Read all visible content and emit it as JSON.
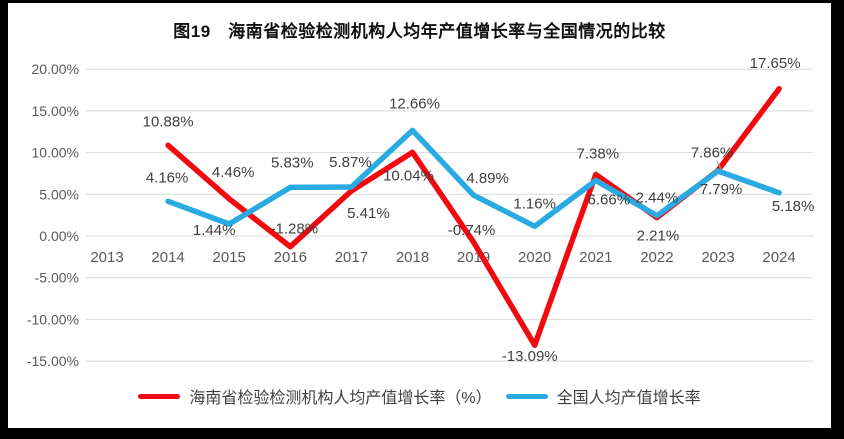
{
  "title": "图19　海南省检验检测机构人均年产值增长率与全国情况的比较",
  "chart_data": {
    "type": "line",
    "title": "图19　海南省检验检测机构人均年产值增长率与全国情况的比较",
    "categories": [
      "2013",
      "2014",
      "2015",
      "2016",
      "2017",
      "2018",
      "2019",
      "2020",
      "2021",
      "2022",
      "2023",
      "2024"
    ],
    "series": [
      {
        "name": "海南省检验检测机构人均产值增长率（%）",
        "color": "#f2090e",
        "values": [
          null,
          10.88,
          4.46,
          -1.28,
          5.41,
          10.04,
          -0.74,
          -13.09,
          7.38,
          2.21,
          7.86,
          17.65
        ],
        "point_labels": [
          null,
          "10.88%",
          "4.46%",
          "-1.28%",
          "5.41%",
          "10.04%",
          "-0.74%",
          "-13.09%",
          "7.38%",
          "2.21%",
          "7.86%",
          "17.65%"
        ]
      },
      {
        "name": "全国人均产值增长率",
        "color": "#29abe2",
        "values": [
          null,
          4.16,
          1.44,
          5.83,
          5.87,
          12.66,
          4.89,
          1.16,
          6.66,
          2.44,
          7.79,
          5.18
        ],
        "point_labels": [
          null,
          "4.16%",
          "1.44%",
          "5.83%",
          "5.87%",
          "12.66%",
          "4.89%",
          "1.16%",
          "6.66%",
          "2.44%",
          "7.79%",
          "5.18%"
        ]
      }
    ],
    "y_axis": {
      "labels": [
        "20.00%",
        "15.00%",
        "10.00%",
        "5.00%",
        "0.00%",
        "-5.00%",
        "-10.00%",
        "-15.00%"
      ],
      "values": [
        20,
        15,
        10,
        5,
        0,
        -5,
        -10,
        -15
      ]
    },
    "ylim": [
      -15,
      20
    ],
    "grid": true,
    "legend_position": "bottom"
  },
  "colors": {
    "grid": "#d9d9d9",
    "axis_text": "#595959",
    "data_label": "#3f3f3f",
    "title_text": "#111111",
    "background": "#ffffff",
    "frame": "#000000",
    "leader_line": "#9b9b9b"
  }
}
